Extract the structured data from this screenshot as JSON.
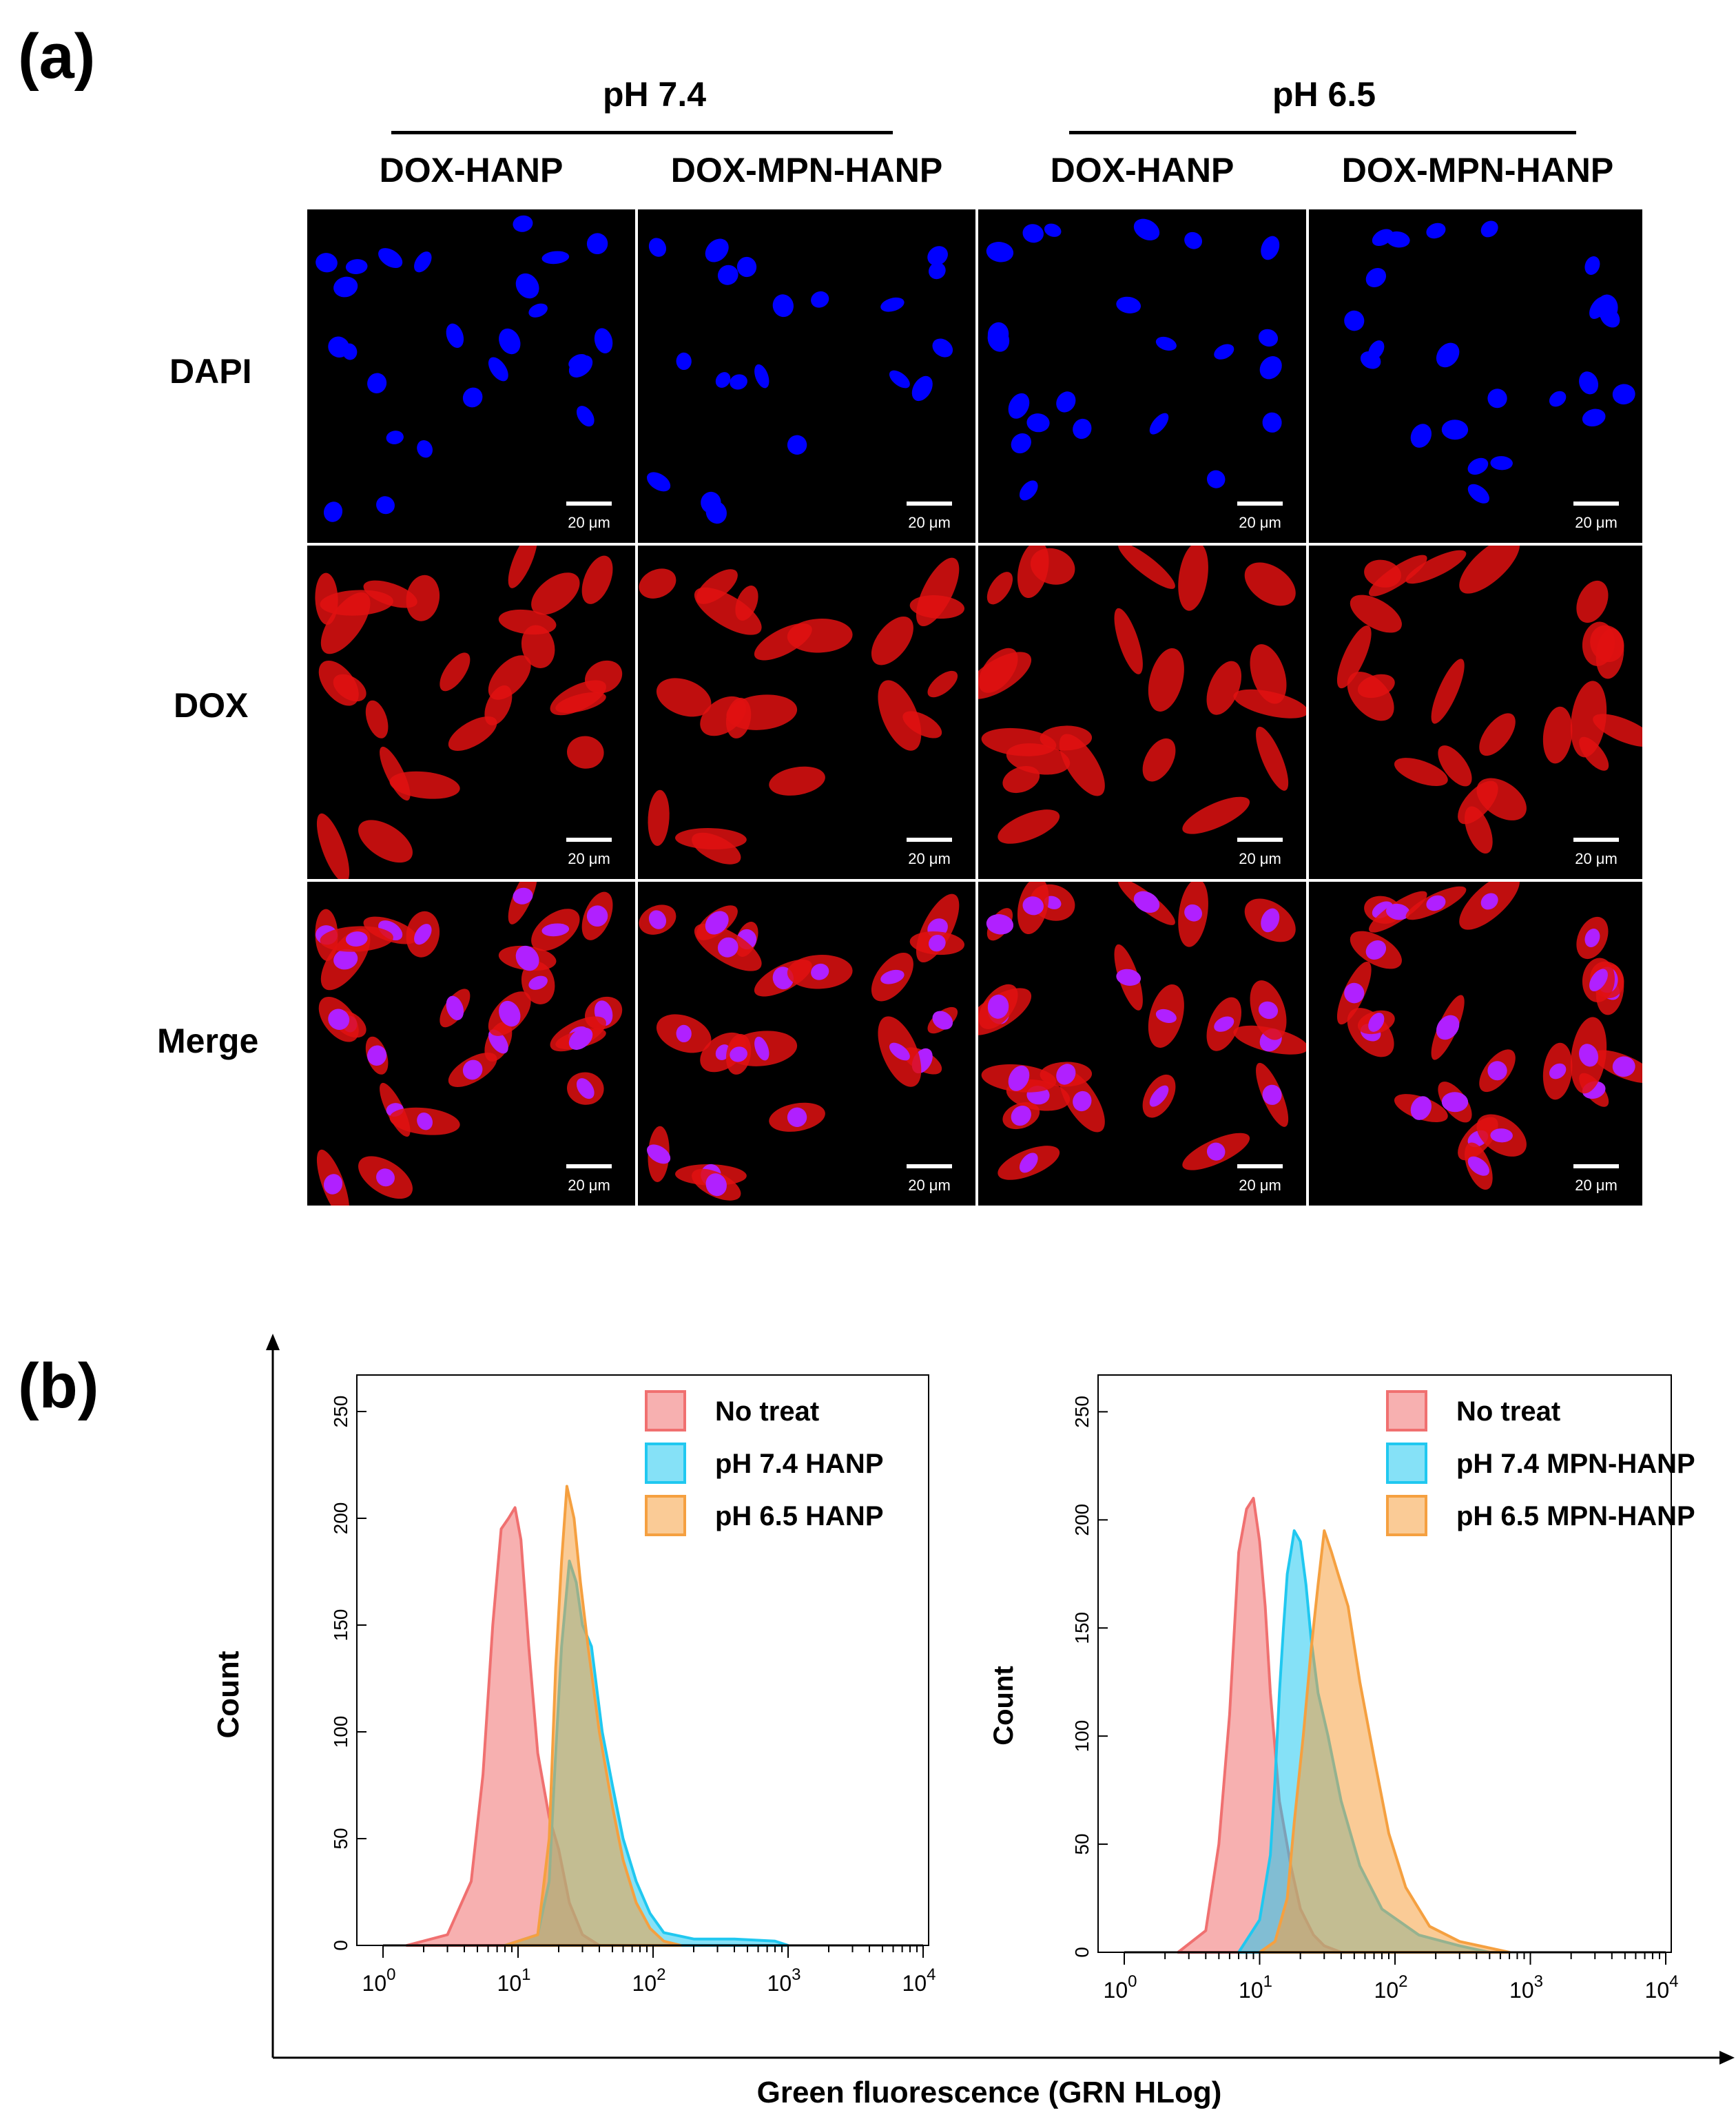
{
  "panel_a": {
    "label": "(a)",
    "ph_groups": [
      {
        "label": "pH 7.4"
      },
      {
        "label": "pH 6.5"
      }
    ],
    "columns": [
      "DOX-HANP",
      "DOX-MPN-HANP",
      "DOX-HANP",
      "DOX-MPN-HANP"
    ],
    "rows": [
      "DAPI",
      "DOX",
      "Merge"
    ],
    "scale_bar": "20 μm",
    "colors": {
      "DAPI": "#0000ff",
      "DOX": "#e01010",
      "Merge_nucleus": "#b020ff"
    }
  },
  "panel_b": {
    "label": "(b)",
    "x_axis_label": "Green fluorescence (GRN HLog)",
    "y_axis_label": "Count",
    "charts": [
      {
        "legend": [
          "No treat",
          "pH 7.4 HANP",
          "pH 6.5 HANP"
        ]
      },
      {
        "legend": [
          "No treat",
          "pH 7.4 MPN-HANP",
          "pH 6.5 MPN-HANP"
        ]
      }
    ]
  },
  "chart_data": [
    {
      "type": "area",
      "title": "",
      "xlabel": "Green fluorescence (GRN HLog)",
      "ylabel": "Count",
      "x_scale": "log",
      "xlim": [
        1,
        10000
      ],
      "ylim": [
        0,
        260
      ],
      "x_ticks": [
        "10^0",
        "10^1",
        "10^2",
        "10^3",
        "10^4"
      ],
      "y_ticks": [
        0,
        50,
        100,
        150,
        200,
        250
      ],
      "legend_position": "top-right",
      "series": [
        {
          "name": "No treat",
          "color": "#f07070",
          "x": [
            1.5,
            3,
            4.5,
            5.5,
            6.5,
            7.5,
            8.5,
            9.5,
            10.5,
            12,
            14,
            17,
            20,
            24,
            30,
            40
          ],
          "y": [
            0,
            5,
            30,
            80,
            150,
            195,
            200,
            205,
            190,
            140,
            90,
            60,
            45,
            20,
            5,
            0
          ]
        },
        {
          "name": "pH 7.4 HANP",
          "color": "#20c8f0",
          "x": [
            8,
            14,
            17,
            19,
            21,
            24,
            27,
            30,
            35,
            42,
            50,
            60,
            75,
            95,
            120,
            200,
            400,
            800,
            1000
          ],
          "y": [
            0,
            5,
            30,
            90,
            140,
            180,
            170,
            150,
            140,
            100,
            75,
            50,
            30,
            15,
            6,
            3,
            3,
            2,
            0
          ]
        },
        {
          "name": "pH 6.5 HANP",
          "color": "#f5a040",
          "x": [
            8,
            14,
            17,
            19,
            21,
            23,
            26,
            29,
            33,
            40,
            50,
            60,
            75,
            95,
            120,
            160
          ],
          "y": [
            0,
            5,
            50,
            130,
            180,
            215,
            200,
            170,
            140,
            100,
            65,
            40,
            20,
            8,
            2,
            0
          ]
        }
      ]
    },
    {
      "type": "area",
      "title": "",
      "xlabel": "Green fluorescence (GRN HLog)",
      "ylabel": "Count",
      "x_scale": "log",
      "xlim": [
        1,
        10000
      ],
      "ylim": [
        0,
        260
      ],
      "x_ticks": [
        "10^0",
        "10^1",
        "10^2",
        "10^3",
        "10^4"
      ],
      "y_ticks": [
        0,
        50,
        100,
        150,
        200,
        250
      ],
      "legend_position": "top-right",
      "series": [
        {
          "name": "No treat",
          "color": "#f07070",
          "x": [
            2.5,
            4,
            5,
            6,
            7,
            8,
            9,
            10,
            11,
            12,
            14,
            17,
            20,
            25,
            30,
            40
          ],
          "y": [
            0,
            10,
            50,
            110,
            185,
            205,
            210,
            190,
            160,
            120,
            70,
            40,
            20,
            8,
            3,
            0
          ]
        },
        {
          "name": "pH 7.4 MPN-HANP",
          "color": "#20c8f0",
          "x": [
            7,
            10,
            12,
            13,
            14,
            15,
            16,
            17,
            18,
            20,
            22,
            24,
            27,
            32,
            40,
            55,
            80,
            150,
            300,
            500
          ],
          "y": [
            0,
            15,
            45,
            80,
            120,
            150,
            175,
            185,
            195,
            190,
            170,
            145,
            120,
            100,
            70,
            40,
            20,
            8,
            3,
            0
          ]
        },
        {
          "name": "pH 6.5 MPN-HANP",
          "color": "#f5a040",
          "x": [
            10,
            13,
            16,
            18,
            21,
            24,
            27,
            30,
            34,
            38,
            45,
            55,
            70,
            90,
            120,
            180,
            300,
            500,
            700
          ],
          "y": [
            0,
            5,
            25,
            60,
            100,
            140,
            170,
            195,
            185,
            175,
            160,
            125,
            90,
            55,
            30,
            12,
            5,
            2,
            0
          ]
        }
      ]
    }
  ]
}
